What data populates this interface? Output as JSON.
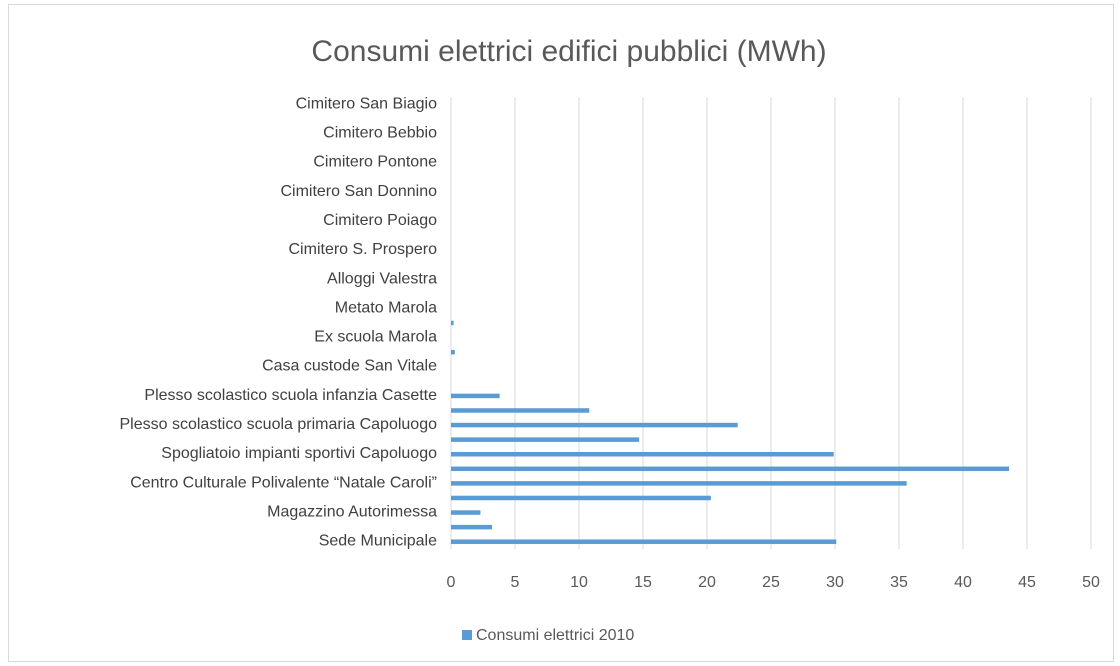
{
  "chart_data": {
    "type": "bar",
    "orientation": "horizontal",
    "title": "Consumi elettrici edifici pubblici (MWh)",
    "xlabel": "",
    "ylabel": "",
    "xlim": [
      0,
      50
    ],
    "x_ticks": [
      0,
      5,
      10,
      15,
      20,
      25,
      30,
      35,
      40,
      45,
      50
    ],
    "grid": "vertical",
    "legend_position": "bottom",
    "bar_color": "#5b9bd5",
    "categories": [
      "Sede Municipale",
      "",
      "Magazzino Autorimessa",
      "",
      "Centro Culturale Polivalente “Natale Caroli”",
      "",
      "Spogliatoio impianti sportivi Capoluogo",
      "",
      "Plesso scolastico scuola primaria Capoluogo",
      "",
      "Plesso scolastico scuola infanzia Casette",
      "",
      "Casa custode San Vitale",
      "",
      "Ex scuola Marola",
      "",
      "Metato Marola",
      "",
      "Alloggi Valestra",
      "",
      "Cimitero S. Prospero",
      "",
      "Cimitero Poiago",
      "",
      "Cimitero San Donnino",
      "",
      "Cimitero Pontone",
      "",
      "Cimitero Bebbio",
      "",
      "Cimitero San Biagio"
    ],
    "series": [
      {
        "name": "Consumi elettrici 2010",
        "values": [
          30.1,
          3.2,
          2.3,
          20.3,
          35.6,
          43.6,
          29.9,
          14.7,
          22.4,
          10.8,
          3.8,
          0,
          0,
          0.3,
          0,
          0.2,
          0,
          0,
          0,
          0,
          0,
          0,
          0,
          0,
          0,
          0,
          0,
          0,
          0,
          0,
          0
        ]
      }
    ]
  }
}
